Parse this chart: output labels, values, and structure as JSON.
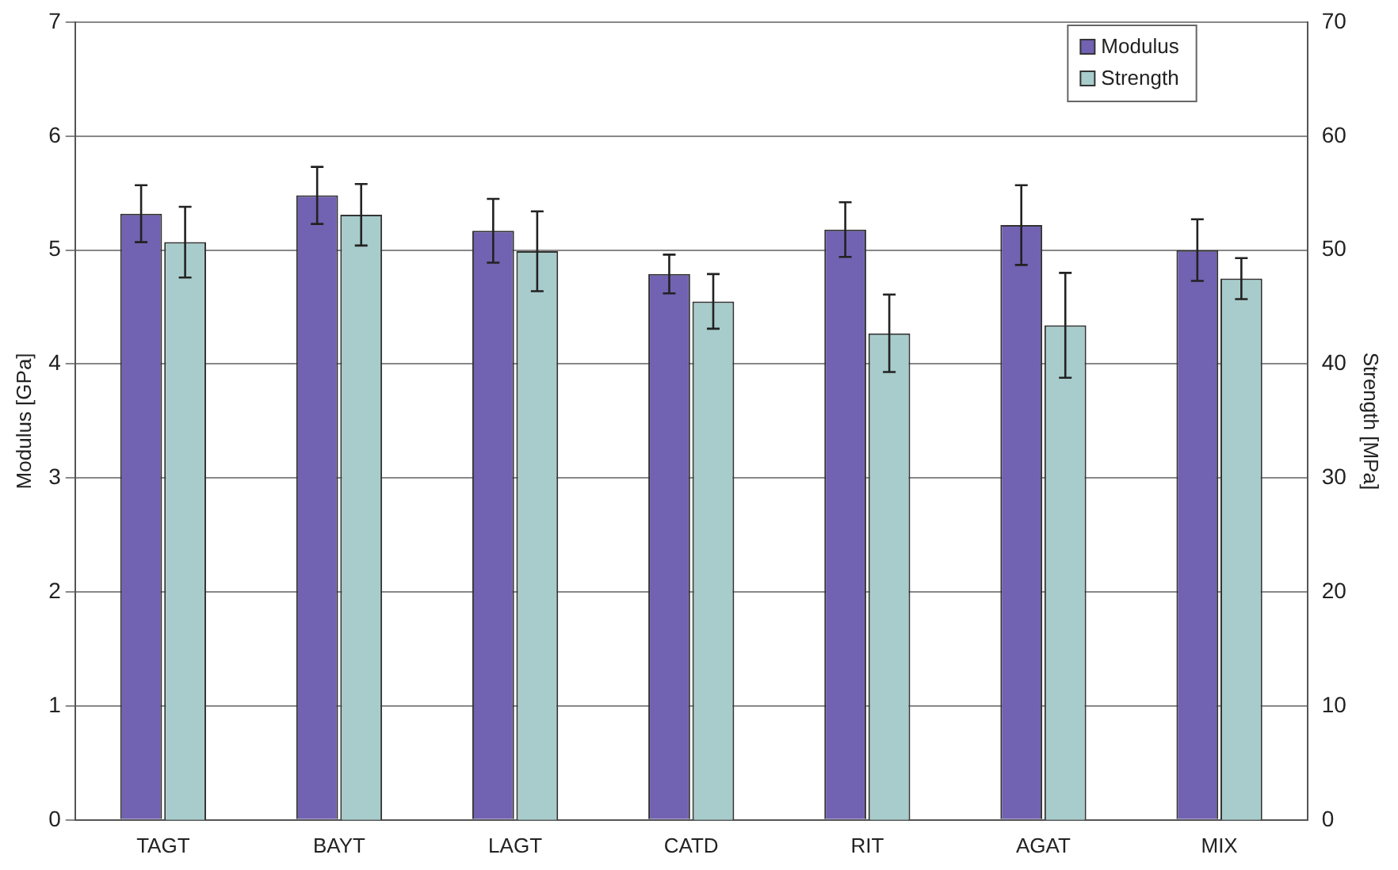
{
  "chart_data": {
    "type": "bar",
    "ylabel": "Modulus [GPa]",
    "y2label": "Strength [MPa]",
    "categories": [
      "TAGT",
      "BAYT",
      "LAGT",
      "CATD",
      "RIT",
      "AGAT",
      "MIX"
    ],
    "series": [
      {
        "name": "Modulus",
        "color": "#7262b2",
        "values": [
          5.32,
          5.48,
          5.17,
          4.79,
          5.18,
          5.22,
          5.0
        ],
        "errors": [
          0.25,
          0.25,
          0.28,
          0.17,
          0.24,
          0.35,
          0.27
        ]
      },
      {
        "name": "Strength",
        "color": "#a8cccc",
        "axis": "y2",
        "values": [
          50.7,
          53.1,
          49.9,
          45.5,
          42.7,
          43.4,
          47.5
        ],
        "errors": [
          3.1,
          2.7,
          3.5,
          2.4,
          3.4,
          4.6,
          1.8
        ]
      }
    ],
    "ylim": [
      0,
      7
    ],
    "yticks": [
      0,
      1,
      2,
      3,
      4,
      5,
      6,
      7
    ],
    "y2lim": [
      0,
      70
    ],
    "y2ticks": [
      0,
      10,
      20,
      30,
      40,
      50,
      60,
      70
    ],
    "grid": "y",
    "legend": "top right"
  }
}
